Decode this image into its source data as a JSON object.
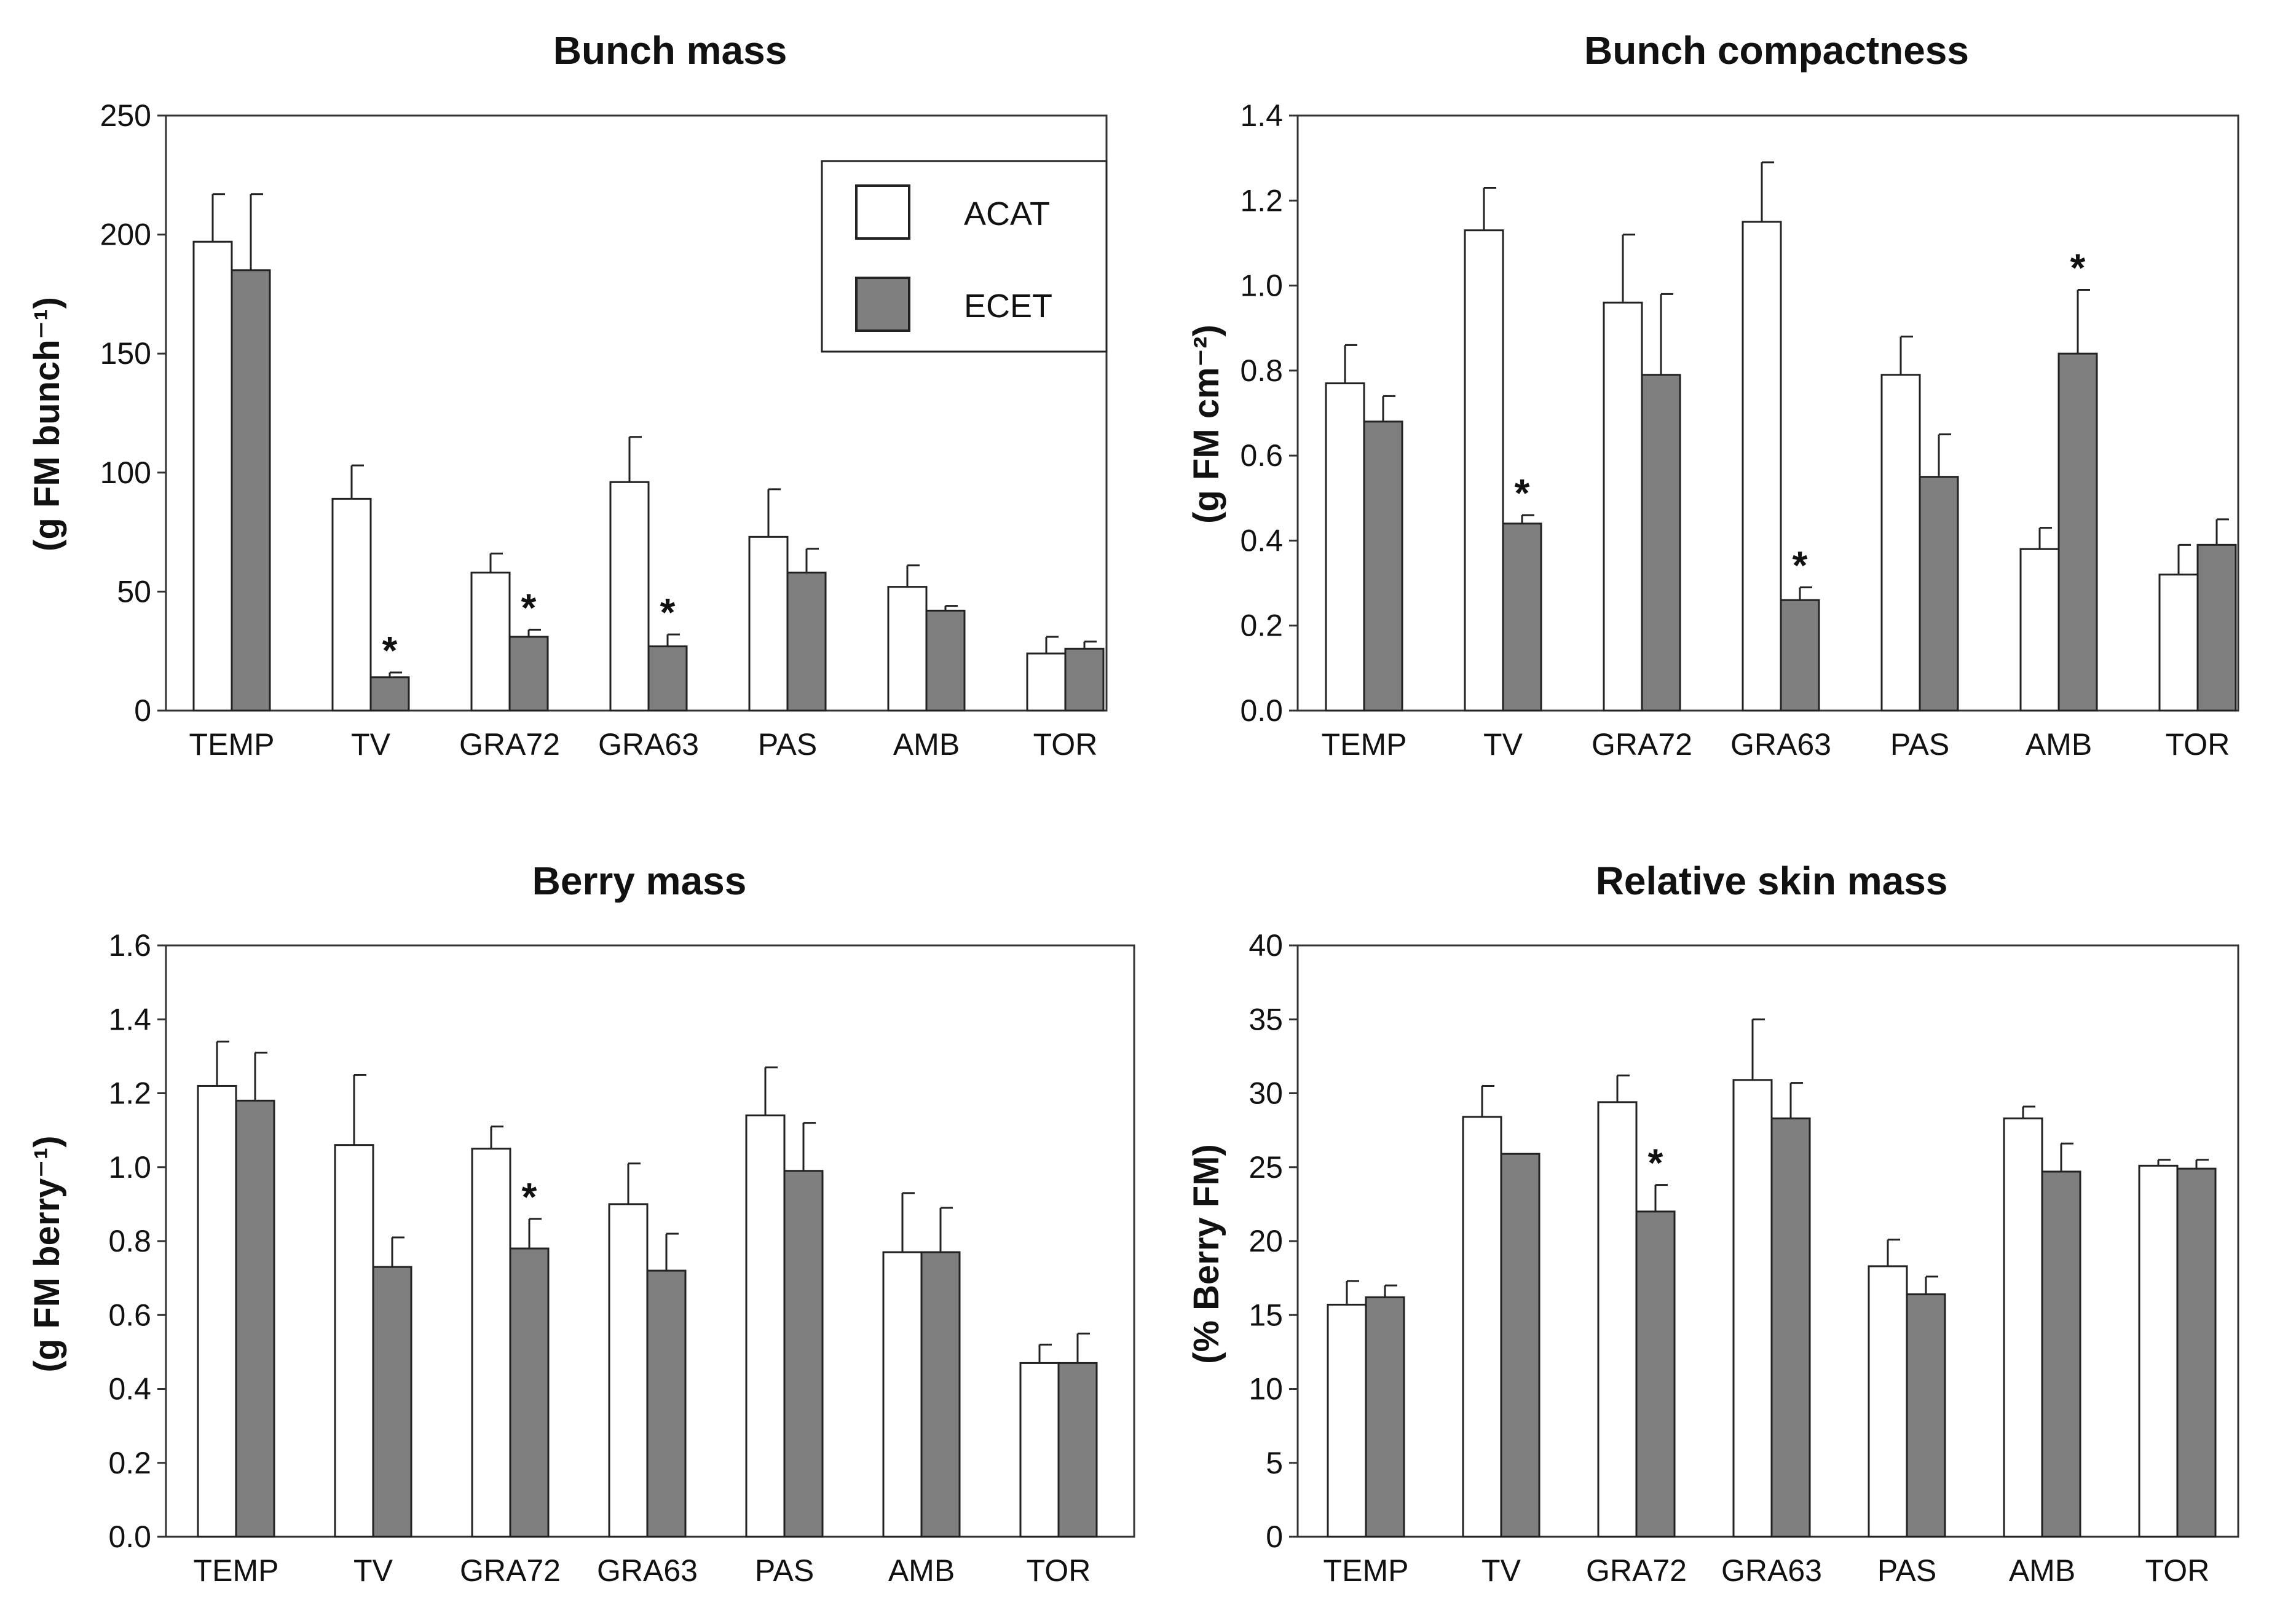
{
  "chart_data": [
    {
      "type": "bar",
      "title": "Bunch mass",
      "ylabel": "(g FM bunch⁻¹)",
      "xlabel": "",
      "ylim": [
        0,
        250
      ],
      "yticks": [
        "0",
        "50",
        "100",
        "150",
        "200",
        "250"
      ],
      "ytick_values": [
        0,
        50,
        100,
        150,
        200,
        250
      ],
      "categories": [
        "TEMP",
        "TV",
        "GRA72",
        "GRA63",
        "PAS",
        "AMB",
        "TOR"
      ],
      "series": [
        {
          "name": "ACAT",
          "color": "#ffffff",
          "values": [
            197,
            89,
            58,
            96,
            73,
            52,
            24
          ],
          "errors": [
            20,
            14,
            8,
            19,
            20,
            9,
            7
          ]
        },
        {
          "name": "ECET",
          "color": "#7f7f7f",
          "values": [
            185,
            14,
            31,
            27,
            58,
            42,
            26
          ],
          "errors": [
            32,
            2,
            3,
            5,
            10,
            2,
            3
          ]
        }
      ],
      "significant": [
        [],
        [],
        [],
        [],
        [],
        [],
        []
      ],
      "significant_ecet": [
        false,
        true,
        true,
        true,
        false,
        false,
        false
      ],
      "significance_marker": "*",
      "legend": {
        "position": "top-right",
        "entries": [
          "ACAT",
          "ECET"
        ]
      }
    },
    {
      "type": "bar",
      "title": "Bunch compactness",
      "ylabel": "(g FM cm⁻²)",
      "xlabel": "",
      "ylim": [
        0,
        1.4
      ],
      "yticks": [
        "0.0",
        "0.2",
        "0.4",
        "0.6",
        "0.8",
        "1.0",
        "1.2",
        "1.4"
      ],
      "ytick_values": [
        0,
        0.2,
        0.4,
        0.6,
        0.8,
        1.0,
        1.2,
        1.4
      ],
      "categories": [
        "TEMP",
        "TV",
        "GRA72",
        "GRA63",
        "PAS",
        "AMB",
        "TOR"
      ],
      "series": [
        {
          "name": "ACAT",
          "color": "#ffffff",
          "values": [
            0.77,
            1.13,
            0.96,
            1.15,
            0.79,
            0.38,
            0.32
          ],
          "errors": [
            0.09,
            0.1,
            0.16,
            0.14,
            0.09,
            0.05,
            0.07
          ]
        },
        {
          "name": "ECET",
          "color": "#7f7f7f",
          "values": [
            0.68,
            0.44,
            0.79,
            0.26,
            0.55,
            0.84,
            0.39
          ],
          "errors": [
            0.06,
            0.02,
            0.19,
            0.03,
            0.1,
            0.15,
            0.06
          ]
        }
      ],
      "significant_ecet": [
        false,
        true,
        false,
        true,
        false,
        true,
        false
      ],
      "significance_marker": "*"
    },
    {
      "type": "bar",
      "title": "Berry mass",
      "ylabel": "(g FM berry⁻¹)",
      "xlabel": "",
      "ylim": [
        0,
        1.6
      ],
      "yticks": [
        "0.0",
        "0.2",
        "0.4",
        "0.6",
        "0.8",
        "1.0",
        "1.2",
        "1.4",
        "1.6"
      ],
      "ytick_values": [
        0,
        0.2,
        0.4,
        0.6,
        0.8,
        1.0,
        1.2,
        1.4,
        1.6
      ],
      "categories": [
        "TEMP",
        "TV",
        "GRA72",
        "GRA63",
        "PAS",
        "AMB",
        "TOR"
      ],
      "series": [
        {
          "name": "ACAT",
          "color": "#ffffff",
          "values": [
            1.22,
            1.06,
            1.05,
            0.9,
            1.14,
            0.77,
            0.47
          ],
          "errors": [
            0.12,
            0.19,
            0.06,
            0.11,
            0.13,
            0.16,
            0.05
          ]
        },
        {
          "name": "ECET",
          "color": "#7f7f7f",
          "values": [
            1.18,
            0.73,
            0.78,
            0.72,
            0.99,
            0.77,
            0.47
          ],
          "errors": [
            0.13,
            0.08,
            0.08,
            0.1,
            0.13,
            0.12,
            0.08
          ]
        }
      ],
      "significant_ecet": [
        false,
        false,
        true,
        false,
        false,
        false,
        false
      ],
      "significance_marker": "*"
    },
    {
      "type": "bar",
      "title": "Relative skin mass",
      "ylabel": "(% Berry FM)",
      "xlabel": "",
      "ylim": [
        0,
        40
      ],
      "yticks": [
        "0",
        "5",
        "10",
        "15",
        "20",
        "25",
        "30",
        "35",
        "40"
      ],
      "ytick_values": [
        0,
        5,
        10,
        15,
        20,
        25,
        30,
        35,
        40
      ],
      "categories": [
        "TEMP",
        "TV",
        "GRA72",
        "GRA63",
        "PAS",
        "AMB",
        "TOR"
      ],
      "series": [
        {
          "name": "ACAT",
          "color": "#ffffff",
          "values": [
            15.7,
            28.4,
            29.4,
            30.9,
            18.3,
            28.3,
            25.1
          ],
          "errors": [
            1.6,
            2.1,
            1.8,
            4.1,
            1.8,
            0.8,
            0.4
          ]
        },
        {
          "name": "ECET",
          "color": "#7f7f7f",
          "values": [
            16.2,
            25.9,
            22.0,
            28.3,
            16.4,
            24.7,
            24.9
          ],
          "errors": [
            0.8,
            0,
            1.8,
            2.4,
            1.2,
            1.9,
            0.6
          ]
        }
      ],
      "significant_ecet": [
        false,
        false,
        true,
        false,
        false,
        false,
        false
      ],
      "significance_marker": "*"
    }
  ]
}
